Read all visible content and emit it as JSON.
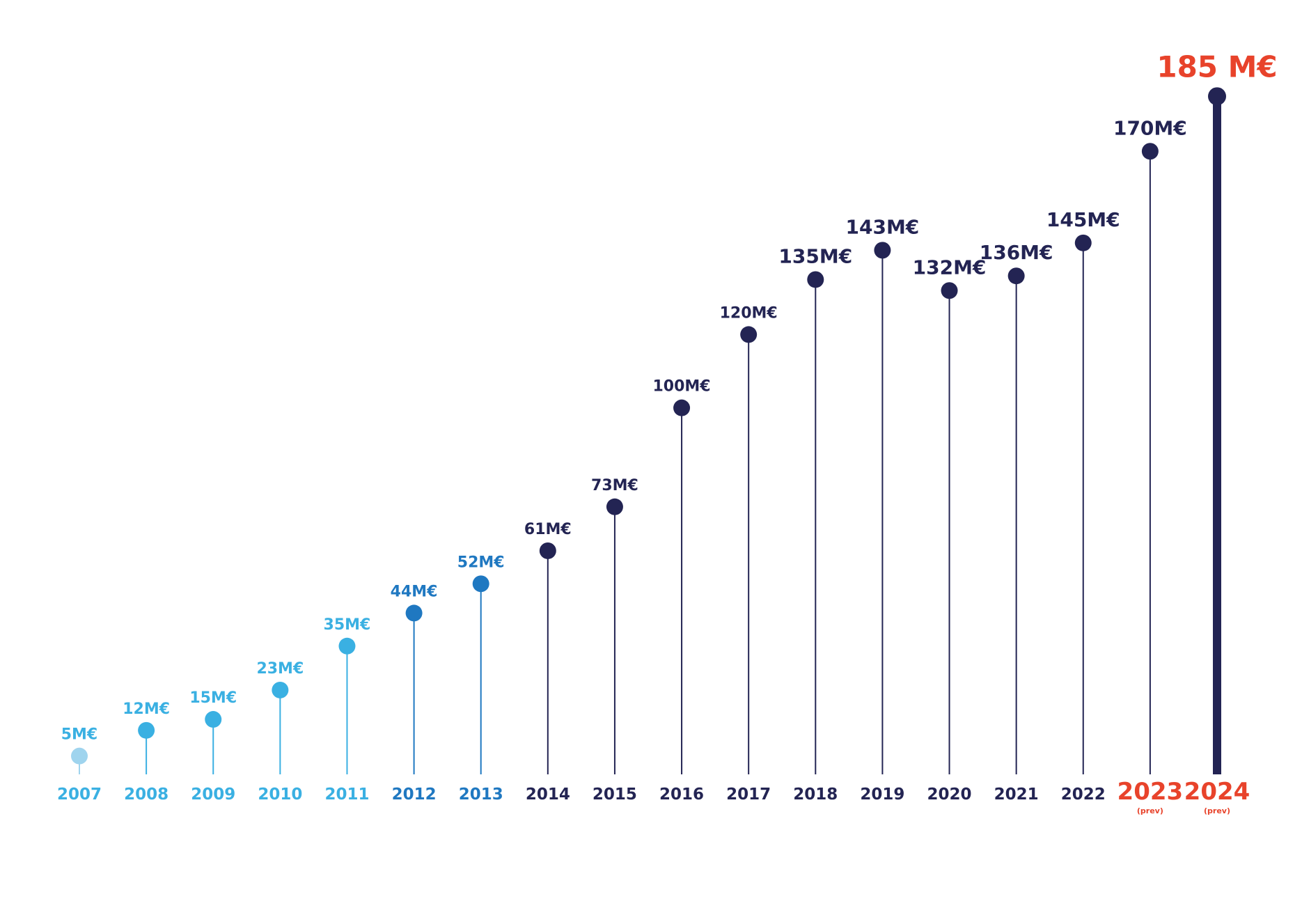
{
  "chart_data": {
    "type": "lollipop",
    "title": "",
    "xlabel": "",
    "ylabel": "",
    "grid": false,
    "legend": "none",
    "ylim": [
      0,
      190
    ],
    "categories": [
      "2007",
      "2008",
      "2009",
      "2010",
      "2011",
      "2012",
      "2013",
      "2014",
      "2015",
      "2016",
      "2017",
      "2018",
      "2019",
      "2020",
      "2021",
      "2022",
      "2023",
      "2024"
    ],
    "values": [
      5,
      12,
      15,
      23,
      35,
      44,
      52,
      61,
      73,
      100,
      120,
      135,
      143,
      132,
      136,
      145,
      170,
      185
    ],
    "value_labels": [
      "5M€",
      "12M€",
      "15M€",
      "23M€",
      "35M€",
      "44M€",
      "52M€",
      "61M€",
      "73M€",
      "100M€",
      "120M€",
      "135M€",
      "143M€",
      "132M€",
      "136M€",
      "145M€",
      "170M€",
      "185 M€"
    ],
    "sub_labels": [
      "",
      "",
      "",
      "",
      "",
      "",
      "",
      "",
      "",
      "",
      "",
      "",
      "",
      "",
      "",
      "",
      "(prev)",
      "(prev)"
    ],
    "colors": [
      "#9fd4ee",
      "#3ab0e2",
      "#3ab0e2",
      "#3ab0e2",
      "#3ab0e2",
      "#1f78c1",
      "#1f78c1",
      "#232453",
      "#232453",
      "#232453",
      "#232453",
      "#232453",
      "#232453",
      "#232453",
      "#232453",
      "#232453",
      "#232453",
      "#232453"
    ],
    "label_colors": [
      "#3ab0e2",
      "#3ab0e2",
      "#3ab0e2",
      "#3ab0e2",
      "#3ab0e2",
      "#1f78c1",
      "#1f78c1",
      "#232453",
      "#232453",
      "#232453",
      "#232453",
      "#232453",
      "#232453",
      "#232453",
      "#232453",
      "#232453",
      "#232453",
      "#e8432b"
    ],
    "year_colors": [
      "#3ab0e2",
      "#3ab0e2",
      "#3ab0e2",
      "#3ab0e2",
      "#3ab0e2",
      "#1f78c1",
      "#1f78c1",
      "#232453",
      "#232453",
      "#232453",
      "#232453",
      "#232453",
      "#232453",
      "#232453",
      "#232453",
      "#232453",
      "#e8432b",
      "#e8432b"
    ],
    "emphasis": [
      false,
      false,
      false,
      false,
      false,
      false,
      false,
      false,
      false,
      false,
      false,
      false,
      false,
      false,
      false,
      false,
      true,
      true
    ],
    "highlight": [
      false,
      false,
      false,
      false,
      false,
      false,
      false,
      false,
      false,
      false,
      false,
      false,
      false,
      false,
      false,
      false,
      false,
      true
    ]
  }
}
